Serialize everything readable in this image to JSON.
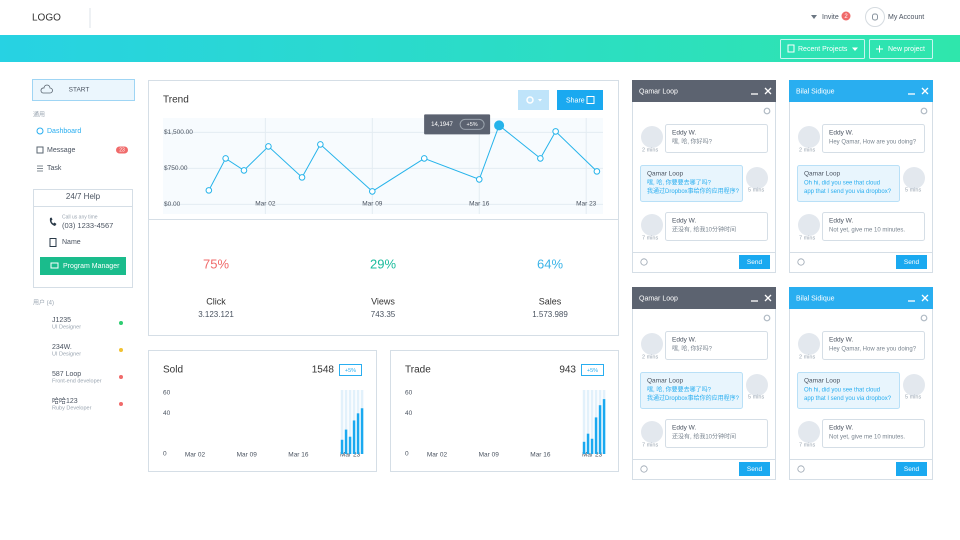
{
  "header": {
    "logo": "LOGO",
    "invite": "Invite",
    "invite_badge": "2",
    "account": "My Account"
  },
  "toolbar": {
    "recent_projects": "Recent Projects",
    "new_project": "New project"
  },
  "sidebar": {
    "start": "START",
    "section": "通用",
    "nav": [
      {
        "label": "Dashboard"
      },
      {
        "label": "Message",
        "badge": "23"
      },
      {
        "label": "Task"
      }
    ],
    "help": {
      "title": "24/7 Help",
      "call": "Call us any time",
      "phone": "(03) 1233-4567",
      "name": "Name",
      "button": "Program Manager"
    },
    "users_title": "用户 (4)",
    "users": [
      {
        "name": "J1235",
        "role": "UI Designer",
        "status_color": "#2ecc71"
      },
      {
        "name": "234W.",
        "role": "UI Designer",
        "status_color": "#f1c232"
      },
      {
        "name": "587 Loop",
        "role": "Front-end developer",
        "status_color": "#f06a6a"
      },
      {
        "name": "哈哈123",
        "role": "Ruby Developer",
        "status_color": "#f06a6a"
      }
    ]
  },
  "chart_data": [
    {
      "type": "line",
      "title": "Trend",
      "share": "Share",
      "color": "#25b3ea",
      "x": [
        -1.7,
        -0.6,
        0.6,
        2.2,
        4.4,
        5.6,
        9.0,
        12.4,
        16.0,
        17.3,
        20.0,
        21.0,
        23.7
      ],
      "values": [
        292,
        958,
        708,
        1208,
        563,
        1250,
        271,
        958,
        521,
        1646,
        958,
        1521,
        688
      ],
      "xlim": [
        -4.7,
        24.1
      ],
      "xticks": [
        {
          "value": 2,
          "label": "Mar 02"
        },
        {
          "value": 9,
          "label": "Mar 09"
        },
        {
          "value": 16,
          "label": "Mar 16"
        },
        {
          "value": 23,
          "label": "Mar 23"
        }
      ],
      "ylim": [
        -200,
        1800
      ],
      "yticks": [
        {
          "value": 0,
          "label": "$0.00"
        },
        {
          "value": 750,
          "label": "$750.00"
        },
        {
          "value": 1500,
          "label": "$1,500.00"
        }
      ],
      "grid": true,
      "tooltip": {
        "label": "14,1947",
        "badge": "+5%"
      }
    },
    {
      "type": "bar",
      "title": "Sold",
      "total": 1548,
      "badge": "+5%",
      "color": "#1aa9f0",
      "track_color": "#e2f1fb",
      "categories": [
        null,
        null,
        null,
        null,
        null,
        null
      ],
      "values": [
        14,
        24,
        17,
        33,
        40,
        45
      ],
      "ylim": [
        0,
        60
      ],
      "yticks": [
        0,
        40,
        60
      ],
      "x_labels": [
        "Mar 02",
        "Mar 09",
        "Mar 16",
        "Mar 23"
      ]
    },
    {
      "type": "bar",
      "title": "Trade",
      "total": 943,
      "badge": "+5%",
      "color": "#1aa9f0",
      "track_color": "#e2f1fb",
      "categories": [
        null,
        null,
        null,
        null,
        null,
        null
      ],
      "values": [
        12,
        20,
        15,
        36,
        48,
        54
      ],
      "ylim": [
        0,
        60
      ],
      "yticks": [
        0,
        40,
        60
      ],
      "x_labels": [
        "Mar 02",
        "Mar 09",
        "Mar 16",
        "Mar 23"
      ]
    }
  ],
  "stats": [
    {
      "percent": "75%",
      "label": "Click",
      "value": "3.123.121",
      "color": "#f06a6a"
    },
    {
      "percent": "29%",
      "label": "Views",
      "value": "743.35",
      "color": "#1abc9c"
    },
    {
      "percent": "64%",
      "label": "Sales",
      "value": "1.573.989",
      "color": "#3bb4e8"
    }
  ],
  "chats": [
    {
      "title": "Qamar Loop",
      "header_color": "#5c6370",
      "send": "Send",
      "messages": [
        {
          "name": "Eddy W.",
          "lines": [
            "嘿, 哈, 你好吗?"
          ],
          "time": "2 mins"
        },
        {
          "name": "Qamar Loop",
          "lines": [
            "嘿, 哈, 你要要去哪了吗?",
            "我通过Dropbox事给你的应用程序?"
          ],
          "time": "5 mins"
        },
        {
          "name": "Eddy W.",
          "lines": [
            "还没有, 给我10分钟时间"
          ],
          "time": "7 mins"
        }
      ]
    },
    {
      "title": "Bilal Sidique",
      "header_color": "#29aef0",
      "send": "Send",
      "messages": [
        {
          "name": "Eddy W.",
          "lines": [
            "Hey Qamar, How are you doing?"
          ],
          "time": "2 mins"
        },
        {
          "name": "Qamar Loop",
          "lines": [
            "Oh hi, did you see that cloud",
            "app that I send you via dropbox?"
          ],
          "time": "5 mins"
        },
        {
          "name": "Eddy W.",
          "lines": [
            "Not yet, give me 10 minutes."
          ],
          "time": "7 mins"
        }
      ]
    },
    {
      "title": "Qamar Loop",
      "header_color": "#5c6370",
      "send": "Send",
      "messages": [
        {
          "name": "Eddy W.",
          "lines": [
            "嘿, 哈, 你好吗?"
          ],
          "time": "2 mins"
        },
        {
          "name": "Qamar Loop",
          "lines": [
            "嘿, 哈, 你要要去哪了吗?",
            "我通过Dropbox事给你的应用程序?"
          ],
          "time": "5 mins"
        },
        {
          "name": "Eddy W.",
          "lines": [
            "还没有, 给我10分钟时间"
          ],
          "time": "7 mins"
        }
      ]
    },
    {
      "title": "Bilal Sidique",
      "header_color": "#29aef0",
      "send": "Send",
      "messages": [
        {
          "name": "Eddy W.",
          "lines": [
            "Hey Qamar, How are you doing?"
          ],
          "time": "2 mins"
        },
        {
          "name": "Qamar Loop",
          "lines": [
            "Oh hi, did you see that cloud",
            "app that I send you via dropbox?"
          ],
          "time": "5 mins"
        },
        {
          "name": "Eddy W.",
          "lines": [
            "Not yet, give me 10 minutes."
          ],
          "time": "7 mins"
        }
      ]
    }
  ]
}
